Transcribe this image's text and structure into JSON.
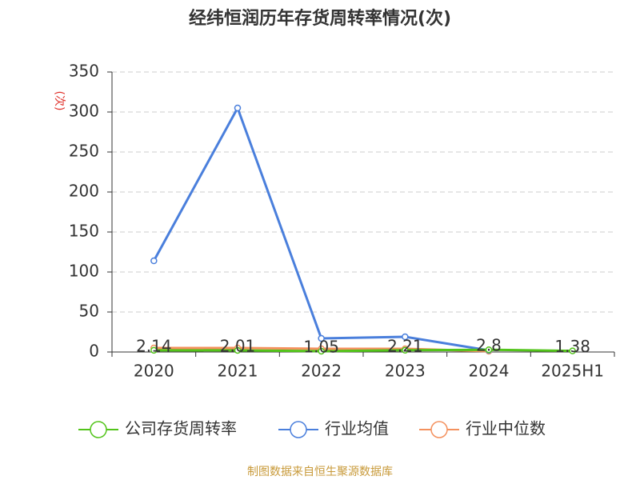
{
  "chart_data": {
    "type": "line",
    "title": "经纬恒润历年存货周转率情况(次)",
    "y_label": "(次)",
    "categories": [
      "2020",
      "2021",
      "2022",
      "2023",
      "2024",
      "2025H1"
    ],
    "series": [
      {
        "name": "公司存货周转率",
        "color": "#52c41a",
        "values": [
          2.14,
          2.01,
          1.05,
          2.21,
          2.8,
          1.38
        ],
        "show_labels": true
      },
      {
        "name": "行业均值",
        "color": "#4a7fdc",
        "values": [
          114,
          305,
          17,
          19,
          2,
          null
        ]
      },
      {
        "name": "行业中位数",
        "color": "#f4915e",
        "values": [
          5,
          5,
          4,
          4,
          1,
          null
        ]
      }
    ],
    "ylim": [
      0,
      350
    ],
    "yticks": [
      0,
      50,
      100,
      150,
      200,
      250,
      300,
      350
    ],
    "grid": true,
    "source": "制图数据来自恒生聚源数据库"
  }
}
